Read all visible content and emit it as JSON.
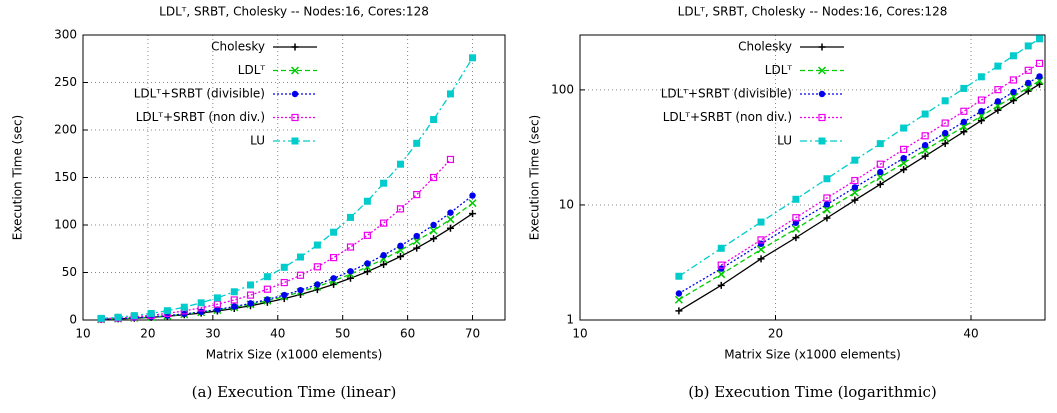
{
  "chart_data": [
    {
      "type": "line",
      "title": "LDLᵀ, SRBT, Cholesky  --  Nodes:16, Cores:128",
      "xlabel": "Matrix Size (x1000 elements)",
      "ylabel": "Execution Time (sec)",
      "caption": "(a) Execution Time (linear)",
      "xlim": [
        10,
        75
      ],
      "xticks": [
        10,
        20,
        30,
        40,
        50,
        60,
        70
      ],
      "ylim": [
        0,
        300
      ],
      "yticks": [
        0,
        50,
        100,
        150,
        200,
        250,
        300
      ],
      "grid": true,
      "legend": "upper left",
      "log_x": false,
      "log_y": false,
      "x": [
        12.8,
        15.4,
        17.9,
        20.5,
        23,
        25.6,
        28.2,
        30.7,
        33.3,
        35.8,
        38.4,
        41,
        43.5,
        46.1,
        48.6,
        51.2,
        53.8,
        56.3,
        58.9,
        61.4,
        64,
        66.6,
        70
      ],
      "series": [
        {
          "name": "Cholesky",
          "color": "#000000",
          "marker": "plus",
          "dash": "solid",
          "values": [
            0.7,
            1.2,
            1.9,
            2.8,
            4.0,
            5.5,
            7.3,
            9.5,
            12.1,
            15.0,
            18.5,
            22.5,
            26.9,
            32.0,
            37.5,
            43.9,
            50.9,
            58.4,
            66.8,
            75.7,
            85.7,
            96.6,
            112
          ]
        },
        {
          "name": "LDLᵀ",
          "color": "#00cc00",
          "marker": "cross",
          "dash": "dashed",
          "values": [
            0.75,
            1.3,
            2.1,
            3.1,
            4.4,
            6.0,
            8.1,
            10.4,
            13.3,
            16.5,
            20.3,
            24.7,
            29.6,
            35.2,
            41.2,
            48.2,
            55.9,
            64.1,
            73.4,
            83.1,
            94.1,
            106,
            123
          ]
        },
        {
          "name": "LDLᵀ+SRBT (divisible)",
          "color": "#0000ee",
          "marker": "circle",
          "dash": "dotted",
          "values": [
            0.8,
            1.4,
            2.2,
            3.3,
            4.6,
            6.4,
            8.6,
            11.1,
            14.1,
            17.5,
            21.6,
            26.3,
            31.4,
            37.4,
            43.9,
            51.3,
            59.5,
            68.2,
            78.1,
            88.4,
            100,
            113,
            131
          ]
        },
        {
          "name": "LDLᵀ+SRBT (non div.)",
          "color": "#ee00ee",
          "marker": "open-square",
          "dash": "dotted",
          "values": [
            1.2,
            2.1,
            3.3,
            4.9,
            7.0,
            9.6,
            12.8,
            16.6,
            21.1,
            26.2,
            32.4,
            39.4,
            47.1,
            56.0,
            65.7,
            76.8,
            89.1,
            102,
            117,
            132,
            150,
            169,
            null
          ]
        },
        {
          "name": "LU",
          "color": "#00cccc",
          "marker": "square",
          "dash": "dashdot",
          "values": [
            1.7,
            2.9,
            4.6,
            6.9,
            9.8,
            13.5,
            18.1,
            23.3,
            29.7,
            36.9,
            45.6,
            55.5,
            66.3,
            78.9,
            92.4,
            108,
            125,
            144,
            164,
            186,
            211,
            238,
            276
          ]
        }
      ]
    },
    {
      "type": "line",
      "title": "LDLᵀ, SRBT, Cholesky  --  Nodes:16, Cores:128",
      "xlabel": "Matrix Size (x1000 elements)",
      "ylabel": "Execution Time (sec)",
      "caption": "(b) Execution Time (logarithmic)",
      "xlim": [
        10,
        52
      ],
      "xticks": [
        10,
        20,
        40
      ],
      "ylim": [
        1,
        300
      ],
      "yticks": [
        1,
        10,
        100
      ],
      "grid": true,
      "legend": "upper left",
      "log_x": true,
      "log_y": true,
      "x": [
        14.2,
        16.5,
        19,
        21.5,
        24,
        26.5,
        29,
        31.5,
        34,
        36.5,
        39,
        41.5,
        44,
        46.5,
        49,
        51
      ],
      "series": [
        {
          "name": "Cholesky",
          "color": "#000000",
          "marker": "plus",
          "dash": "solid",
          "values": [
            1.2,
            2.0,
            3.4,
            5.2,
            7.7,
            11.0,
            15.1,
            20.3,
            26.6,
            34.2,
            43.3,
            54.1,
            66.5,
            80.9,
            97.6,
            112
          ]
        },
        {
          "name": "LDLᵀ",
          "color": "#00cc00",
          "marker": "cross",
          "dash": "dashed",
          "values": [
            1.5,
            2.5,
            4.1,
            6.2,
            9.1,
            12.8,
            17.4,
            23.1,
            30.0,
            38.3,
            47.9,
            59.4,
            72.6,
            87.6,
            105,
            120
          ]
        },
        {
          "name": "LDLᵀ+SRBT (divisible)",
          "color": "#0000ee",
          "marker": "circle",
          "dash": "dotted",
          "values": [
            1.7,
            2.8,
            4.6,
            7.0,
            10.1,
            14.2,
            19.3,
            25.5,
            33.1,
            42.1,
            52.7,
            65.3,
            79.5,
            95.9,
            115,
            131
          ]
        },
        {
          "name": "LDLᵀ+SRBT (non div.)",
          "color": "#ee00ee",
          "marker": "open-square",
          "dash": "dotted",
          "values": [
            null,
            3.0,
            4.97,
            7.75,
            11.5,
            16.3,
            22.6,
            30.4,
            39.9,
            51.5,
            65.2,
            81.6,
            100.5,
            122,
            148,
            170
          ]
        },
        {
          "name": "LU",
          "color": "#00cccc",
          "marker": "square",
          "dash": "dashdot",
          "values": [
            2.4,
            4.2,
            7.1,
            11.2,
            16.9,
            24.5,
            34.1,
            46.6,
            61.7,
            80.4,
            103,
            130,
            161,
            198,
            241,
            278
          ]
        }
      ]
    }
  ]
}
